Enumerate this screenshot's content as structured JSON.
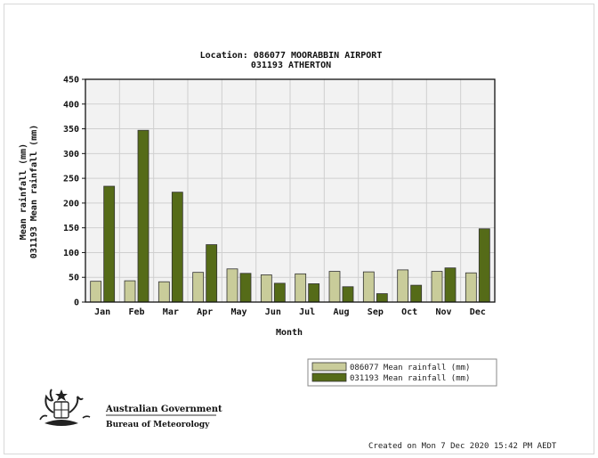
{
  "title_line1": "Location: 086077 MOORABBIN AIRPORT",
  "title_line2": "031193 ATHERTON",
  "footer": {
    "created": "Created on Mon  7 Dec 2020 15:42 PM AEDT"
  },
  "logo": {
    "gov_name": "Australian Government",
    "bureau_name": "Bureau of Meteorology"
  },
  "colors": {
    "series1": "#c9cc9a",
    "series2": "#556b18",
    "plot_bg": "#f2f2f2",
    "grid": "#cfcfcf"
  },
  "chart_data": {
    "type": "bar",
    "xlabel": "Month",
    "ylabel_line1": "Mean rainfall (mm)",
    "ylabel_line2": "031193 Mean rainfall (mm)",
    "ylim": [
      0,
      450
    ],
    "yticks": [
      0,
      50,
      100,
      150,
      200,
      250,
      300,
      350,
      400,
      450
    ],
    "grid": true,
    "legend_position": "bottom-right",
    "categories": [
      "Jan",
      "Feb",
      "Mar",
      "Apr",
      "May",
      "Jun",
      "Jul",
      "Aug",
      "Sep",
      "Oct",
      "Nov",
      "Dec"
    ],
    "series": [
      {
        "name": "086077 Mean rainfall (mm)",
        "values": [
          42,
          43,
          41,
          60,
          67,
          55,
          57,
          62,
          61,
          65,
          62,
          59
        ]
      },
      {
        "name": "031193 Mean rainfall (mm)",
        "values": [
          234,
          347,
          222,
          116,
          58,
          38,
          37,
          31,
          17,
          34,
          69,
          148
        ]
      }
    ]
  }
}
